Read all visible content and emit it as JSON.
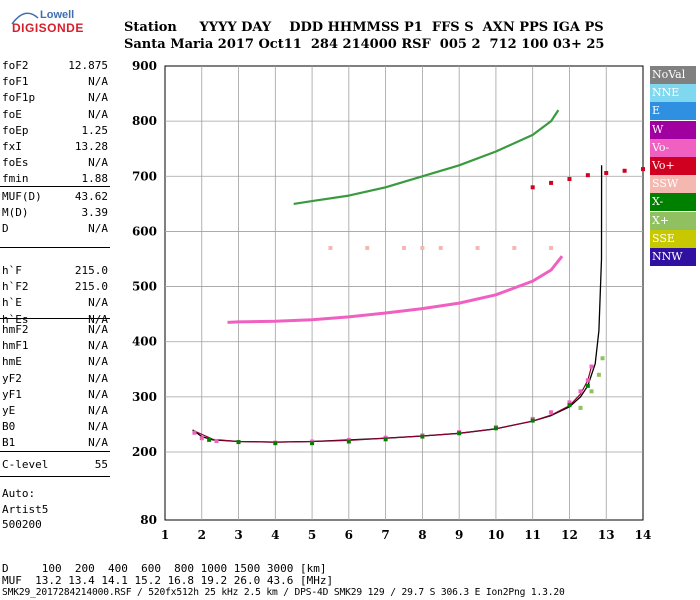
{
  "logo": {
    "line1": "Lowell",
    "line2": "DIGISONDE"
  },
  "header": {
    "row1": "Station     YYYY DAY    DDD HHMMSS P1  FFS S  AXN PPS IGA PS",
    "row2": "Santa Maria 2017 Oct11  284 214000 RSF  005 2  712 100 03+ 25"
  },
  "params_block1": [
    {
      "name": "foF2",
      "value": "12.875"
    },
    {
      "name": "foF1",
      "value": "N/A"
    },
    {
      "name": "foF1p",
      "value": "N/A"
    },
    {
      "name": "foE",
      "value": "N/A"
    },
    {
      "name": "foEp",
      "value": "1.25"
    },
    {
      "name": "fxI",
      "value": "13.28"
    },
    {
      "name": "foEs",
      "value": "N/A"
    },
    {
      "name": "fmin",
      "value": "1.88"
    }
  ],
  "params_block2": [
    {
      "name": "MUF(D)",
      "value": "43.62"
    },
    {
      "name": "M(D)",
      "value": "3.39"
    },
    {
      "name": "D",
      "value": "N/A"
    }
  ],
  "params_block3": [
    {
      "name": "h`F",
      "value": "215.0"
    },
    {
      "name": "h`F2",
      "value": "215.0"
    },
    {
      "name": "h`E",
      "value": "N/A"
    },
    {
      "name": "h`Es",
      "value": "N/A"
    }
  ],
  "params_block4": [
    {
      "name": "hmF2",
      "value": "N/A"
    },
    {
      "name": "hmF1",
      "value": "N/A"
    },
    {
      "name": "hmE",
      "value": "N/A"
    },
    {
      "name": "yF2",
      "value": "N/A"
    },
    {
      "name": "yF1",
      "value": "N/A"
    },
    {
      "name": "yE",
      "value": "N/A"
    },
    {
      "name": "B0",
      "value": "N/A"
    },
    {
      "name": "B1",
      "value": "N/A"
    }
  ],
  "params_block5": [
    {
      "name": "C-level",
      "value": "55"
    }
  ],
  "autoscale": {
    "line1": "Auto:",
    "line2": "Artist5",
    "line3": "500200"
  },
  "footer": {
    "row1": "D     100  200  400  600  800 1000 1500 3000 [km]",
    "row2": "MUF  13.2 13.4 14.1 15.2 16.8 19.2 26.0 43.6 [MHz]",
    "row3": "SMK29_2017284214000.RSF / 520fx512h 25 kHz 2.5 km / DPS-4D SMK29 129 / 29.7 S 306.3 E Ion2Png 1.3.20"
  },
  "legend": [
    {
      "label": "NoVal",
      "bg": "#808080",
      "fg": "#ffffff"
    },
    {
      "label": "NNE",
      "bg": "#80d8f0",
      "fg": "#ffffff"
    },
    {
      "label": "E",
      "bg": "#2f8fe0",
      "fg": "#ffffff"
    },
    {
      "label": "W",
      "bg": "#a000a0",
      "fg": "#ffffff"
    },
    {
      "label": "Vo-",
      "bg": "#f060c0",
      "fg": "#ffffff"
    },
    {
      "label": "Vo+",
      "bg": "#d00020",
      "fg": "#ffffff"
    },
    {
      "label": "SSW",
      "bg": "#f5b8b0",
      "fg": "#ffffff"
    },
    {
      "label": "X-",
      "bg": "#008000",
      "fg": "#ffffff"
    },
    {
      "label": "X+",
      "bg": "#90c060",
      "fg": "#ffffff"
    },
    {
      "label": "SSE",
      "bg": "#c8c800",
      "fg": "#ffffff"
    },
    {
      "label": "NNW",
      "bg": "#3010a0",
      "fg": "#ffffff"
    }
  ],
  "chart_data": {
    "type": "scatter",
    "title": "",
    "xlabel": "",
    "ylabel": "",
    "xlim": [
      1,
      14
    ],
    "ylim": [
      80,
      900
    ],
    "x_ticks": [
      1,
      2,
      3,
      4,
      5,
      6,
      7,
      8,
      9,
      10,
      11,
      12,
      13,
      14
    ],
    "y_ticks": [
      80,
      200,
      300,
      400,
      500,
      600,
      700,
      800,
      900
    ],
    "y_tick_labels": [
      "80",
      "200",
      "300",
      "400",
      "500",
      "600",
      "700",
      "800",
      "900"
    ],
    "grid": true,
    "legend_position": "right",
    "series": [
      {
        "name": "Vo-",
        "color": "#f060c0",
        "x": [
          1.8,
          2.0,
          2.4,
          3.0,
          4.0,
          5.0,
          6.0,
          7.0,
          8.0,
          9.0,
          10.0,
          11.0,
          11.5,
          12.0,
          12.3,
          12.5,
          12.6
        ],
        "y": [
          235,
          225,
          220,
          218,
          217,
          219,
          222,
          226,
          230,
          236,
          245,
          260,
          272,
          290,
          310,
          330,
          355
        ]
      },
      {
        "name": "X-",
        "color": "#008000",
        "x": [
          2.2,
          3.0,
          4.0,
          5.0,
          6.0,
          7.0,
          8.0,
          9.0,
          10.0,
          11.0,
          12.0,
          12.5
        ],
        "y": [
          222,
          218,
          216,
          216,
          219,
          223,
          228,
          234,
          243,
          257,
          285,
          320
        ]
      },
      {
        "name": "X+",
        "color": "#90c060",
        "x": [
          12.3,
          12.6,
          12.8,
          12.9
        ],
        "y": [
          280,
          310,
          340,
          370
        ]
      },
      {
        "name": "Vo+",
        "color": "#d00020",
        "x": [
          11.0,
          11.5,
          12.0,
          12.5,
          13.0,
          13.5,
          14.0
        ],
        "y": [
          680,
          688,
          695,
          702,
          706,
          710,
          713
        ]
      },
      {
        "name": "SSW",
        "color": "#f5b8b0",
        "x": [
          5.5,
          6.5,
          7.5,
          8.0,
          8.5,
          9.5,
          10.5,
          11.5
        ],
        "y": [
          570,
          570,
          570,
          570,
          570,
          570,
          570,
          570
        ]
      }
    ],
    "traces": [
      {
        "name": "F2 O-trace (black)",
        "x": [
          1.75,
          2.0,
          2.3,
          3.0,
          4.0,
          5.0,
          6.0,
          7.0,
          8.0,
          9.0,
          10.0,
          11.0,
          11.5,
          12.0,
          12.3,
          12.5,
          12.7,
          12.8,
          12.87,
          12.875
        ],
        "y": [
          240,
          228,
          222,
          219,
          218,
          219,
          222,
          225,
          229,
          234,
          242,
          256,
          266,
          282,
          300,
          320,
          360,
          420,
          550,
          720
        ]
      },
      {
        "name": "F2 X-trace (maroon)",
        "x": [
          1.8,
          2.3,
          3.0,
          4.0,
          5.0,
          6.0,
          7.0,
          8.0,
          9.0,
          10.0,
          11.0,
          11.5,
          12.0,
          12.3,
          12.5,
          12.6
        ],
        "y": [
          238,
          223,
          219,
          218,
          219,
          221,
          225,
          229,
          234,
          242,
          256,
          267,
          284,
          305,
          330,
          355
        ]
      },
      {
        "name": "2F2 echo",
        "x": [
          2.7,
          3.0,
          4.0,
          5.0,
          6.0,
          7.0,
          8.0,
          9.0,
          10.0,
          11.0,
          11.5,
          11.8
        ],
        "y": [
          435,
          436,
          437,
          440,
          445,
          452,
          460,
          470,
          485,
          510,
          530,
          555
        ]
      },
      {
        "name": "3F2 echo",
        "x": [
          4.5,
          5.0,
          6.0,
          7.0,
          8.0,
          9.0,
          10.0,
          11.0,
          11.5,
          11.7
        ],
        "y": [
          650,
          655,
          665,
          680,
          700,
          720,
          745,
          775,
          800,
          820
        ]
      }
    ],
    "frequency_unit": "MHz",
    "height_unit": "km"
  }
}
